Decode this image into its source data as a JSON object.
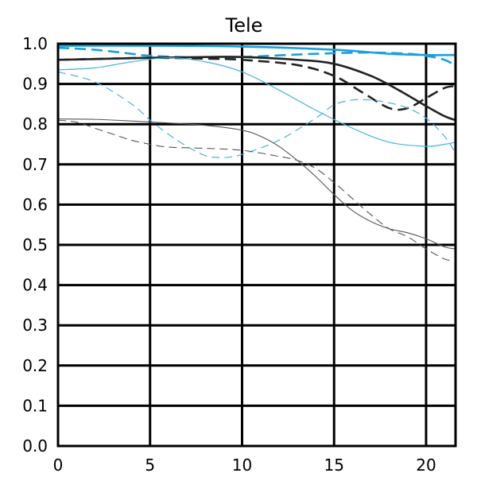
{
  "chart_data": {
    "type": "line",
    "title": "Tele",
    "xlabel": "",
    "ylabel": "",
    "xlim": [
      0,
      21.6
    ],
    "ylim": [
      0,
      1.0
    ],
    "grid": true,
    "legend": "none",
    "x_ticks": [
      0,
      5,
      10,
      15,
      20
    ],
    "y_ticks": [
      0.0,
      0.1,
      0.2,
      0.3,
      0.4,
      0.5,
      0.6,
      0.7,
      0.8,
      0.9,
      1.0
    ],
    "x_tick_labels": [
      "0",
      "5",
      "10",
      "15",
      "20"
    ],
    "y_tick_labels": [
      "0.0",
      "0.1",
      "0.2",
      "0.3",
      "0.4",
      "0.5",
      "0.6",
      "0.7",
      "0.8",
      "0.9",
      "1.0"
    ],
    "series": [
      {
        "color": "#1aa0dc",
        "width": 2.6,
        "dash": "solid",
        "x": [
          0,
          5,
          10,
          15,
          18,
          20,
          21.6
        ],
        "y": [
          0.995,
          0.995,
          0.993,
          0.985,
          0.975,
          0.972,
          0.972
        ]
      },
      {
        "color": "#1aa0dc",
        "width": 2.6,
        "dash": "dashed",
        "x": [
          0,
          2,
          4,
          5,
          8,
          10,
          14,
          17,
          19,
          20,
          21,
          21.6
        ],
        "y": [
          0.99,
          0.985,
          0.975,
          0.97,
          0.965,
          0.967,
          0.975,
          0.978,
          0.975,
          0.97,
          0.96,
          0.945
        ]
      },
      {
        "color": "#222222",
        "width": 2.6,
        "dash": "solid",
        "x": [
          0,
          3,
          5,
          8,
          10,
          13,
          15,
          17,
          18.5,
          20,
          21,
          21.6
        ],
        "y": [
          0.96,
          0.963,
          0.965,
          0.967,
          0.967,
          0.96,
          0.95,
          0.92,
          0.885,
          0.845,
          0.82,
          0.81
        ]
      },
      {
        "color": "#222222",
        "width": 2.6,
        "dash": "dashed",
        "x": [
          0,
          3,
          5,
          8,
          10,
          13,
          15,
          16.5,
          18,
          19,
          20,
          21,
          21.6
        ],
        "y": [
          0.96,
          0.963,
          0.965,
          0.963,
          0.96,
          0.947,
          0.92,
          0.88,
          0.84,
          0.84,
          0.865,
          0.89,
          0.895
        ]
      },
      {
        "color": "#45b5e4",
        "width": 1.2,
        "dash": "solid",
        "x": [
          0,
          2,
          4,
          6,
          8,
          10,
          12,
          14,
          16,
          18,
          20,
          21,
          21.6
        ],
        "y": [
          0.935,
          0.94,
          0.955,
          0.965,
          0.955,
          0.93,
          0.885,
          0.835,
          0.79,
          0.755,
          0.745,
          0.75,
          0.755
        ]
      },
      {
        "color": "#45b5e4",
        "width": 1.2,
        "dash": "dashed",
        "x": [
          0,
          2,
          4,
          5,
          6,
          7,
          8,
          9,
          10,
          12,
          14,
          15,
          16,
          17,
          18,
          19,
          20,
          21,
          21.6
        ],
        "y": [
          0.93,
          0.905,
          0.85,
          0.81,
          0.775,
          0.745,
          0.722,
          0.717,
          0.725,
          0.76,
          0.815,
          0.848,
          0.86,
          0.86,
          0.853,
          0.84,
          0.815,
          0.77,
          0.728
        ]
      },
      {
        "color": "#555555",
        "width": 1.1,
        "dash": "solid",
        "x": [
          0,
          2,
          4,
          6,
          8,
          10,
          11,
          12,
          13,
          14,
          15,
          16,
          17,
          18,
          19,
          20,
          21,
          21.6
        ],
        "y": [
          0.813,
          0.812,
          0.808,
          0.803,
          0.797,
          0.785,
          0.77,
          0.745,
          0.71,
          0.67,
          0.625,
          0.585,
          0.558,
          0.54,
          0.53,
          0.515,
          0.495,
          0.49
        ]
      },
      {
        "color": "#555555",
        "width": 1.1,
        "dash": "dashed",
        "x": [
          0,
          1,
          2,
          3,
          4,
          5,
          6,
          8,
          10,
          12,
          13,
          14,
          15,
          16,
          17,
          18,
          19,
          20,
          21,
          21.6
        ],
        "y": [
          0.81,
          0.805,
          0.79,
          0.775,
          0.76,
          0.75,
          0.743,
          0.74,
          0.735,
          0.72,
          0.71,
          0.69,
          0.655,
          0.615,
          0.575,
          0.54,
          0.52,
          0.49,
          0.465,
          0.46
        ]
      }
    ]
  }
}
